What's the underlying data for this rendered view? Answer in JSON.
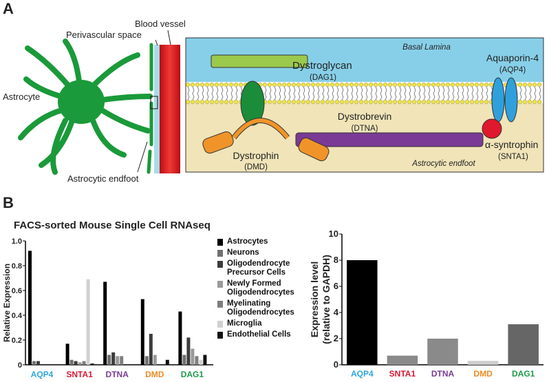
{
  "panel_a": {
    "label": "A",
    "blood_vessel": "Blood vessel",
    "perivascular_space": "Perivascular space",
    "astrocyte": "Astrocyte",
    "astrocytic_endfoot": "Astrocytic endfoot",
    "basal_lamina": "Basal Lamina",
    "endfoot_region": "Astrocytic endfoot",
    "dystroglycan": {
      "name": "Dystroglycan",
      "gene": "(DAG1)"
    },
    "aquaporin": {
      "name": "Aquaporin-4",
      "gene": "(AQP4)"
    },
    "dystrobrevin": {
      "name": "Dystrobrevin",
      "gene": "(DTNA)"
    },
    "syntrophin": {
      "name": "α-syntrophin",
      "gene": "(SNTA1)"
    },
    "dystrophin": {
      "name": "Dystrophin",
      "gene": "(DMD)"
    }
  },
  "panel_b": {
    "label": "B"
  },
  "chart_data": [
    {
      "type": "grouped-bar",
      "title": "FACS-sorted Mouse Single Cell RNAseq",
      "ylabel": "Relative Expression",
      "categories": [
        "AQP4",
        "SNTA1",
        "DTNA",
        "DMD",
        "DAG1"
      ],
      "category_colors": [
        "#2ea6dc",
        "#d8172f",
        "#7a3a96",
        "#f08a24",
        "#1b9a48"
      ],
      "ylim": [
        0,
        1
      ],
      "yticks": [
        0,
        0.2,
        0.4,
        0.6,
        0.8,
        {
          "value": 1,
          "label": "1.0"
        }
      ],
      "series": [
        {
          "name": "Astrocytes",
          "color": "#000000",
          "values": [
            0.92,
            0.17,
            0.67,
            0.53,
            0.43
          ]
        },
        {
          "name": "Neurons",
          "color": "#707070",
          "values": [
            0.03,
            0.04,
            0.08,
            0.07,
            0.08
          ]
        },
        {
          "name": "Oligodendrocyte Precursor Cells",
          "color": "#3c3c3c",
          "values": [
            0.03,
            0.03,
            0.1,
            0.25,
            0.22
          ]
        },
        {
          "name": "Newly Formed Oligodendrocytes",
          "color": "#9a9a9a",
          "values": [
            0,
            0.02,
            0.07,
            0.08,
            0.13
          ]
        },
        {
          "name": "Myelinating Oligodendrocytes",
          "color": "#7e7e7e",
          "values": [
            0,
            0.03,
            0.07,
            0,
            0.07
          ]
        },
        {
          "name": "Microglia",
          "color": "#d0d0d0",
          "values": [
            0,
            0.69,
            0,
            0,
            0.04
          ]
        },
        {
          "name": "Endothelial Cells",
          "color": "#111111",
          "values": [
            0,
            0.01,
            0,
            0.04,
            0.08
          ]
        }
      ]
    },
    {
      "type": "bar",
      "ylabel": [
        "Expression level",
        "(relative to GAPDH)"
      ],
      "categories": [
        "AQP4",
        "SNTA1",
        "DTNA",
        "DMD",
        "DAG1"
      ],
      "category_colors": [
        "#2ea6dc",
        "#d8172f",
        "#7a3a96",
        "#f08a24",
        "#1b9a48"
      ],
      "values": [
        8.0,
        0.7,
        2.0,
        0.3,
        3.1
      ],
      "colors": [
        "#000000",
        "#8a8a8a",
        "#8a8a8a",
        "#cccccc",
        "#666666"
      ],
      "ylim": [
        0,
        10
      ],
      "yticks": [
        0,
        2,
        4,
        6,
        8,
        10
      ]
    }
  ]
}
